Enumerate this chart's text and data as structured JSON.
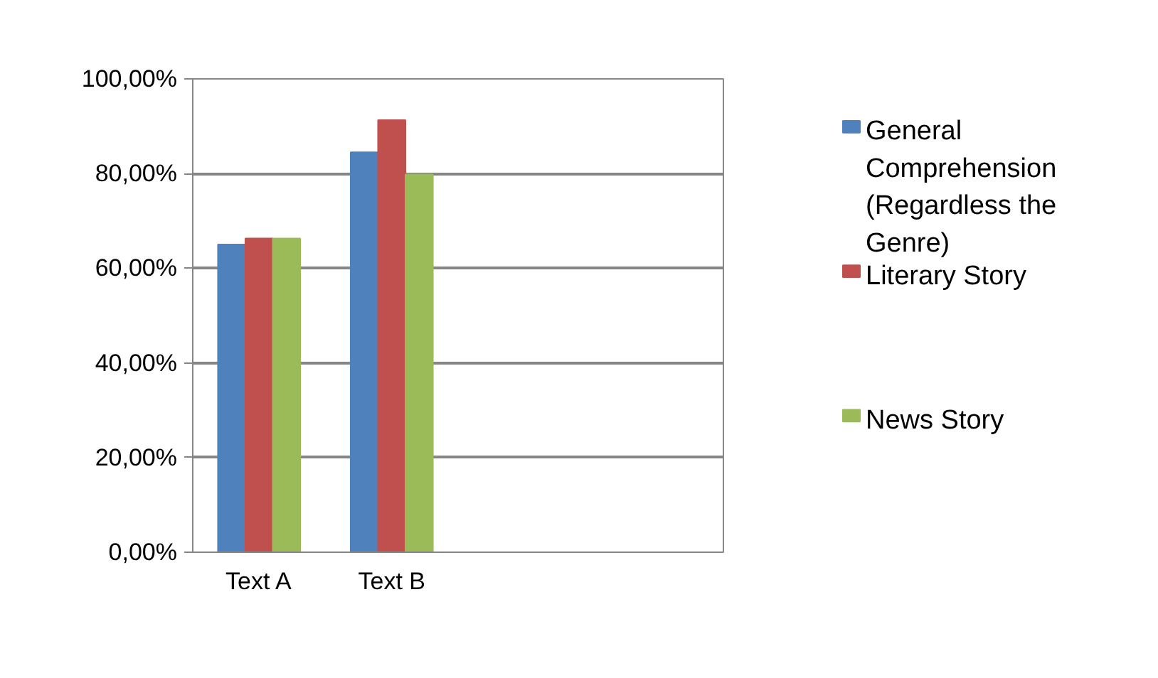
{
  "chart_data": {
    "type": "bar",
    "categories": [
      "Text A",
      "Text B",
      null,
      null
    ],
    "series": [
      {
        "name": "General Comprehension (Regardless the Genre)",
        "color": "#4f81bd",
        "values": [
          65,
          84.5,
          null,
          null
        ]
      },
      {
        "name": "Literary Story",
        "color": "#c0504d",
        "values": [
          66.3,
          91.3,
          null,
          null
        ]
      },
      {
        "name": "News Story",
        "color": "#9bbb59",
        "values": [
          66.3,
          79.8,
          null,
          null
        ]
      }
    ],
    "ylim": [
      0,
      100
    ],
    "yticks": [
      {
        "value": 0,
        "label": "0,00%"
      },
      {
        "value": 20,
        "label": "20,00%"
      },
      {
        "value": 40,
        "label": "40,00%"
      },
      {
        "value": 60,
        "label": "60,00%"
      },
      {
        "value": 80,
        "label": "80,00%"
      },
      {
        "value": 100,
        "label": "100,00%"
      }
    ],
    "grid": "y",
    "legend": "right"
  }
}
